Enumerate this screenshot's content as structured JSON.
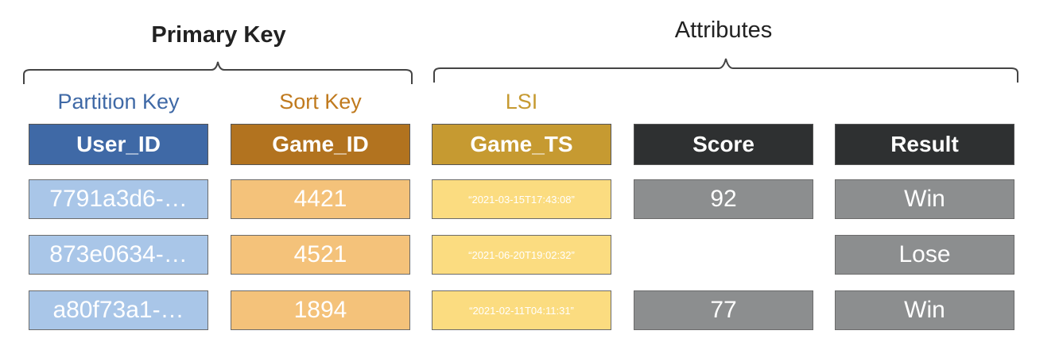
{
  "groups": {
    "primary_key": "Primary Key",
    "attributes": "Attributes"
  },
  "column_labels": {
    "partition_key": "Partition Key",
    "sort_key": "Sort Key",
    "lsi": "LSI"
  },
  "headers": {
    "user_id": "User_ID",
    "game_id": "Game_ID",
    "game_ts": "Game_TS",
    "score": "Score",
    "result": "Result"
  },
  "rows": [
    {
      "user_id": "7791a3d6-…",
      "game_id": "4421",
      "game_ts": "“2021-03-15T17:43:08”",
      "score": "92",
      "result": "Win"
    },
    {
      "user_id": "873e0634-…",
      "game_id": "4521",
      "game_ts": "“2021-06-20T19:02:32”",
      "score": "",
      "result": "Lose"
    },
    {
      "user_id": "a80f73a1-…",
      "game_id": "1894",
      "game_ts": "“2021-02-11T04:11:31”",
      "score": "77",
      "result": "Win"
    }
  ],
  "colors": {
    "partition_label": "#3f69a6",
    "sort_label": "#c07a1e",
    "lsi_label": "#c69a31"
  }
}
